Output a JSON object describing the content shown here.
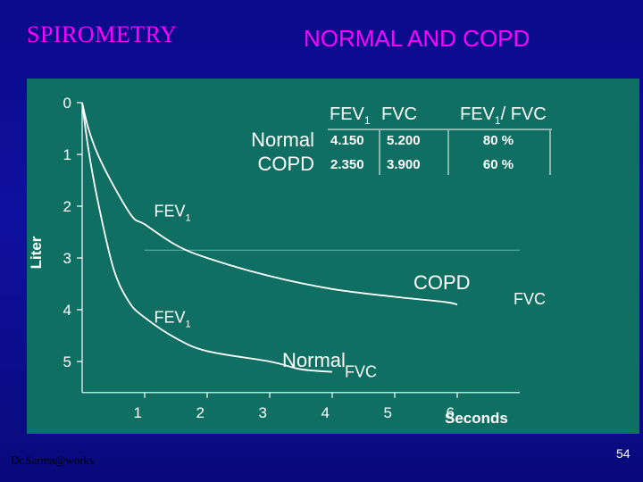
{
  "header": {
    "left_title": "SPIROMETRY",
    "right_title": "NORMAL AND COPD"
  },
  "footer": {
    "credit": "Dr.Sarma@works",
    "page_number": "54"
  },
  "colors": {
    "background": "#1010a0",
    "panel": "#0f6f62",
    "title": "#ff00ff",
    "curve": "#ffffff",
    "text": "#ffffff"
  },
  "chart_data": {
    "type": "line",
    "ylabel": "Liter",
    "xlabel": "Seconds",
    "x_ticks": [
      1,
      2,
      3,
      4,
      5,
      6
    ],
    "y_ticks": [
      0,
      1,
      2,
      3,
      4,
      5
    ],
    "xlim": [
      0,
      7
    ],
    "ylim": [
      0,
      5.6
    ],
    "y_inverted": true,
    "grid": false,
    "series": [
      {
        "name": "COPD",
        "x": [
          0,
          0.1,
          0.25,
          0.5,
          0.8,
          1.0,
          1.5,
          2.0,
          3.0,
          4.0,
          5.0,
          5.8,
          6.0
        ],
        "y": [
          0,
          0.5,
          1.0,
          1.6,
          2.2,
          2.35,
          2.75,
          3.0,
          3.35,
          3.6,
          3.75,
          3.85,
          3.9
        ]
      },
      {
        "name": "Normal",
        "x": [
          0,
          0.1,
          0.25,
          0.5,
          0.75,
          1.0,
          1.5,
          2.0,
          3.0,
          3.5,
          4.0
        ],
        "y": [
          0,
          0.9,
          1.9,
          3.2,
          3.85,
          4.15,
          4.55,
          4.8,
          5.0,
          5.15,
          5.2
        ]
      }
    ],
    "reference_lines": [
      {
        "y": 2.85,
        "x_range": [
          1,
          7
        ]
      }
    ],
    "annotations": [
      {
        "text": "FEV",
        "sub": "1",
        "x": 1.15,
        "y": 2.2
      },
      {
        "text": "FEV",
        "sub": "1",
        "x": 1.15,
        "y": 4.25
      },
      {
        "text": "COPD",
        "x": 5.3,
        "y": 3.6
      },
      {
        "text": "FVC",
        "x": 6.9,
        "y": 3.9
      },
      {
        "text": "Normal",
        "x": 3.2,
        "y": 5.1
      },
      {
        "text": "FVC",
        "x": 4.2,
        "y": 5.3
      }
    ],
    "table": {
      "columns": [
        {
          "text": "FEV",
          "sub": "1",
          "suffix": ""
        },
        {
          "text": "FVC",
          "sub": "",
          "suffix": ""
        },
        {
          "text": "FEV",
          "sub": "1",
          "suffix": "/ FVC"
        }
      ],
      "rows": [
        {
          "label": "Normal",
          "values": [
            "4.150",
            "5.200",
            "80 %"
          ]
        },
        {
          "label": "COPD",
          "values": [
            "2.350",
            "3.900",
            "60 %"
          ]
        }
      ]
    }
  }
}
